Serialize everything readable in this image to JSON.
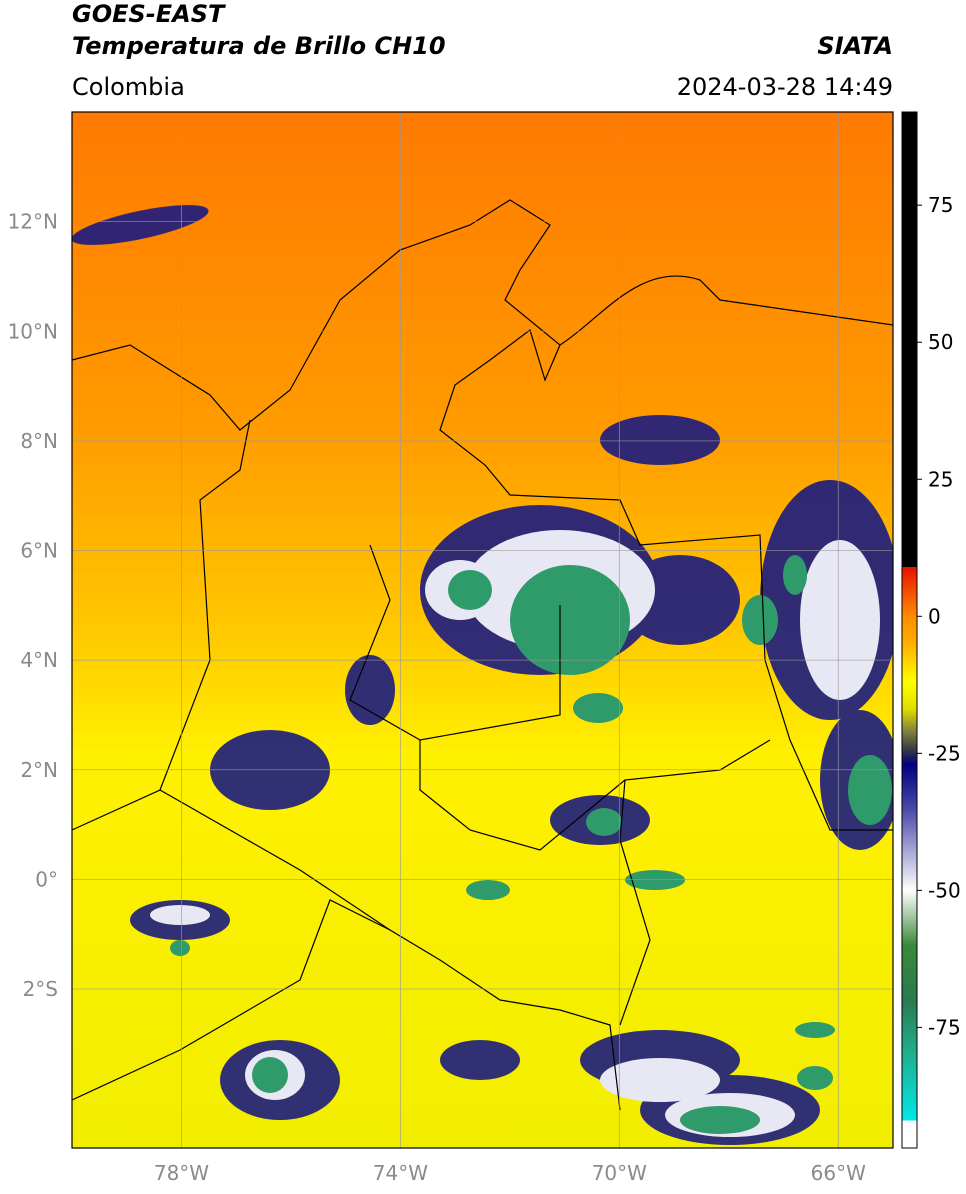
{
  "header": {
    "satellite": "GOES-EAST",
    "product": "Temperatura de Brillo CH10",
    "source": "SIATA",
    "region": "Colombia",
    "datetime": "2024-03-28 14:49"
  },
  "map": {
    "lonlim": [
      -80,
      -65
    ],
    "latlim": [
      -4.9,
      14
    ],
    "grid": true,
    "lonticks": [
      {
        "value": -78,
        "label": "78°W"
      },
      {
        "value": -74,
        "label": "74°W"
      },
      {
        "value": -70,
        "label": "70°W"
      },
      {
        "value": -66,
        "label": "66°W"
      }
    ],
    "latticks": [
      {
        "value": -2,
        "label": "2°S"
      },
      {
        "value": 0,
        "label": "0°"
      },
      {
        "value": 2,
        "label": "2°N"
      },
      {
        "value": 4,
        "label": "4°N"
      },
      {
        "value": 6,
        "label": "6°N"
      },
      {
        "value": 8,
        "label": "8°N"
      },
      {
        "value": 10,
        "label": "10°N"
      },
      {
        "value": 12,
        "label": "12°N"
      }
    ]
  },
  "colorbar": {
    "lim": [
      -97,
      92
    ],
    "ticks": [
      -75,
      -50,
      -25,
      0,
      25,
      50,
      75
    ],
    "colormap": [
      {
        "value": 92,
        "color": "#000000"
      },
      {
        "value": 9,
        "color": "#000000"
      },
      {
        "value": 9,
        "color": "#e81000"
      },
      {
        "value": 0,
        "color": "#ff8c00"
      },
      {
        "value": -5,
        "color": "#ffb000"
      },
      {
        "value": -12,
        "color": "#ffff00"
      },
      {
        "value": -17,
        "color": "#e0dc00"
      },
      {
        "value": -21,
        "color": "#808040"
      },
      {
        "value": -24,
        "color": "#404040"
      },
      {
        "value": -27,
        "color": "#000080"
      },
      {
        "value": -35,
        "color": "#4848a8"
      },
      {
        "value": -50,
        "color": "#ffffff"
      },
      {
        "value": -60,
        "color": "#3a8a3a"
      },
      {
        "value": -70,
        "color": "#2a7a50"
      },
      {
        "value": -80,
        "color": "#20b090"
      },
      {
        "value": -92,
        "color": "#00e8e8"
      },
      {
        "value": -92,
        "color": "#ffffff"
      },
      {
        "value": -97,
        "color": "#ffffff"
      }
    ]
  }
}
